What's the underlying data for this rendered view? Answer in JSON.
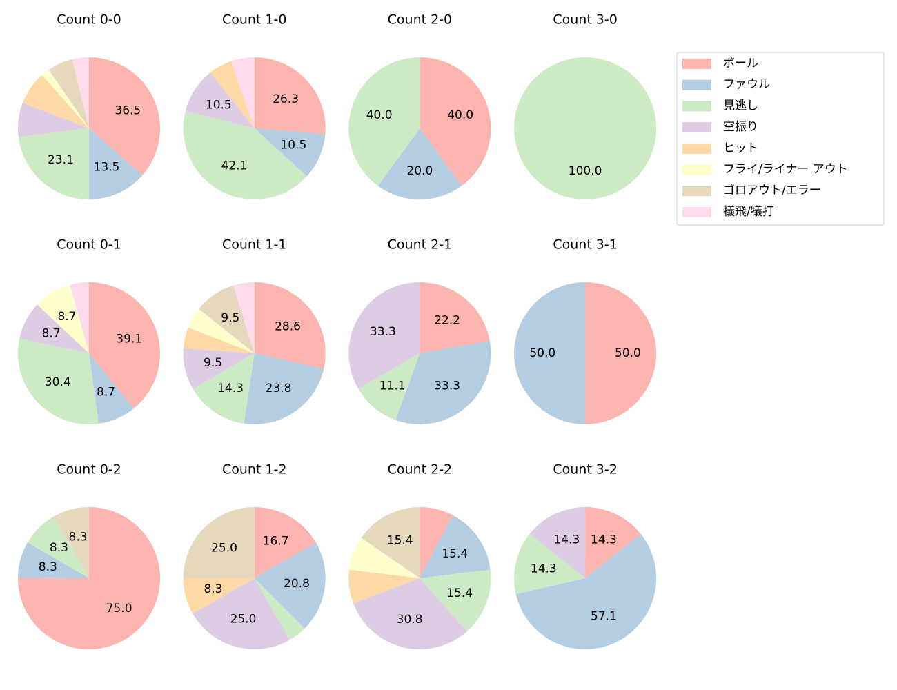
{
  "legend": {
    "labels": [
      "ボール",
      "ファウル",
      "見逃し",
      "空振り",
      "ヒット",
      "フライ/ライナー アウト",
      "ゴロアウト/エラー",
      "犠飛/犠打"
    ],
    "colors": [
      "#fbb4ae",
      "#b3cde3",
      "#ccebc5",
      "#decbe4",
      "#fed9a6",
      "#ffffcc",
      "#e5d8bd",
      "#fddaec"
    ]
  },
  "chart_data": [
    {
      "type": "pie",
      "title": "Count 0-0",
      "values": [
        36.5,
        13.5,
        23.1,
        7.7,
        7.7,
        1.9,
        5.8,
        3.8
      ],
      "value_labels": [
        "36.5",
        "13.5",
        "23.1",
        null,
        null,
        null,
        null,
        null
      ]
    },
    {
      "type": "pie",
      "title": "Count 1-0",
      "values": [
        26.3,
        10.5,
        42.1,
        10.5,
        5.3,
        0,
        0,
        5.3
      ],
      "value_labels": [
        "26.3",
        "10.5",
        "42.1",
        "10.5",
        null,
        null,
        null,
        null
      ]
    },
    {
      "type": "pie",
      "title": "Count 2-0",
      "values": [
        40,
        20,
        40,
        0,
        0,
        0,
        0,
        0
      ],
      "value_labels": [
        "40.0",
        "20.0",
        "40.0",
        null,
        null,
        null,
        null,
        null
      ]
    },
    {
      "type": "pie",
      "title": "Count 3-0",
      "values": [
        0,
        0,
        100,
        0,
        0,
        0,
        0,
        0
      ],
      "value_labels": [
        null,
        null,
        "100.0",
        null,
        null,
        null,
        null,
        null
      ]
    },
    {
      "type": "pie",
      "title": "Count 0-1",
      "values": [
        39.1,
        8.7,
        30.4,
        8.7,
        0,
        8.7,
        0,
        4.3
      ],
      "value_labels": [
        "39.1",
        "8.7",
        "30.4",
        "8.7",
        null,
        "8.7",
        null,
        null
      ]
    },
    {
      "type": "pie",
      "title": "Count 1-1",
      "values": [
        28.6,
        23.8,
        14.3,
        9.5,
        4.8,
        4.8,
        9.5,
        4.8
      ],
      "value_labels": [
        "28.6",
        "23.8",
        "14.3",
        "9.5",
        null,
        null,
        "9.5",
        null
      ]
    },
    {
      "type": "pie",
      "title": "Count 2-1",
      "values": [
        22.2,
        33.3,
        11.1,
        33.3,
        0,
        0,
        0,
        0
      ],
      "value_labels": [
        "22.2",
        "33.3",
        "11.1",
        "33.3",
        null,
        null,
        null,
        null
      ]
    },
    {
      "type": "pie",
      "title": "Count 3-1",
      "values": [
        50,
        50,
        0,
        0,
        0,
        0,
        0,
        0
      ],
      "value_labels": [
        "50.0",
        "50.0",
        null,
        null,
        null,
        null,
        null,
        null
      ]
    },
    {
      "type": "pie",
      "title": "Count 0-2",
      "values": [
        75,
        8.3,
        8.3,
        0,
        0,
        0,
        8.3,
        0
      ],
      "value_labels": [
        "75.0",
        "8.3",
        "8.3",
        null,
        null,
        null,
        "8.3",
        null
      ]
    },
    {
      "type": "pie",
      "title": "Count 1-2",
      "values": [
        16.7,
        20.8,
        4.2,
        25,
        8.3,
        0,
        25,
        0
      ],
      "value_labels": [
        "16.7",
        "20.8",
        null,
        "25.0",
        "8.3",
        null,
        "25.0",
        null
      ]
    },
    {
      "type": "pie",
      "title": "Count 2-2",
      "values": [
        7.7,
        15.4,
        15.4,
        30.8,
        7.7,
        7.7,
        15.4,
        0
      ],
      "value_labels": [
        null,
        "15.4",
        "15.4",
        "30.8",
        null,
        null,
        "15.4",
        null
      ]
    },
    {
      "type": "pie",
      "title": "Count 3-2",
      "values": [
        14.3,
        57.1,
        14.3,
        14.3,
        0,
        0,
        0,
        0
      ],
      "value_labels": [
        "14.3",
        "57.1",
        "14.3",
        "14.3",
        null,
        null,
        null,
        null
      ]
    }
  ]
}
